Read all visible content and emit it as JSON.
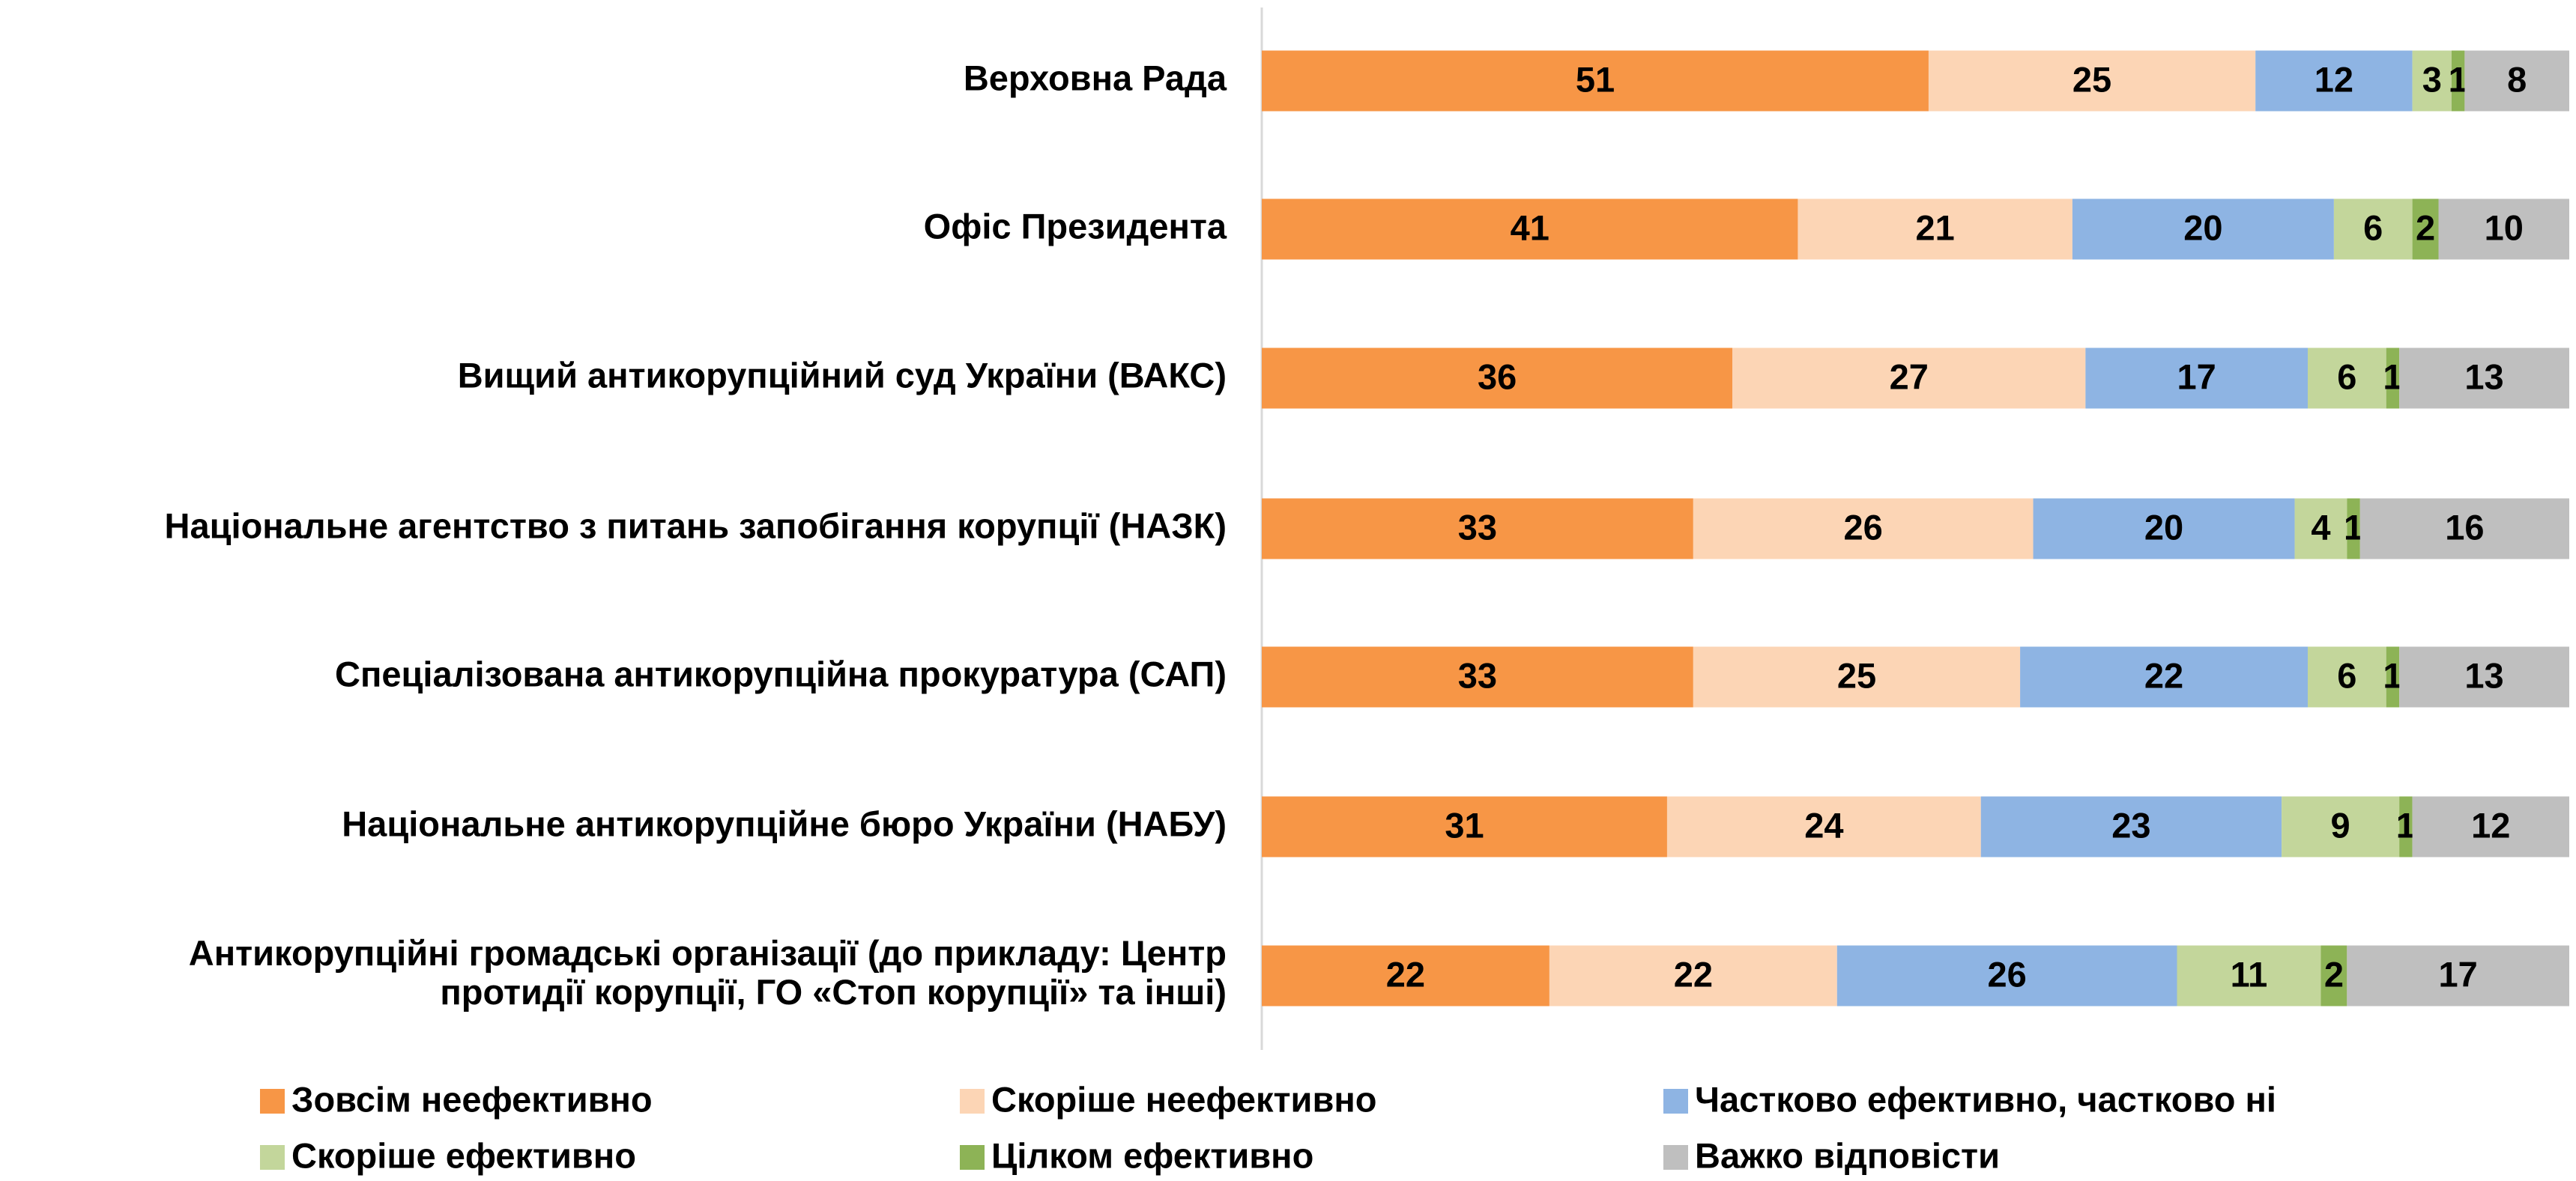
{
  "chart_data": {
    "type": "stacked-bar-horizontal",
    "categories": [
      "Верховна Рада",
      "Офіс Президента",
      "Вищий антикорупційний суд України (ВАКС)",
      "Національне агентство з питань запобігання корупції (НАЗК)",
      "Спеціалізована антикорупційна прокуратура (САП)",
      "Національне антикорупційне бюро України (НАБУ)",
      [
        "Антикорупційні громадські організації (до прикладу: Центр",
        "протидії корупції, ГО «Стоп корупції» та інші)"
      ]
    ],
    "series": [
      {
        "name": "Зовсім неефективно",
        "color": "#f79646",
        "values": [
          51,
          41,
          36,
          33,
          33,
          31,
          22
        ]
      },
      {
        "name": "Скоріше неефективно",
        "color": "#fcd5b5",
        "values": [
          25,
          21,
          27,
          26,
          25,
          24,
          22
        ]
      },
      {
        "name": "Частково ефективно, частково ні",
        "color": "#8eb4e3",
        "values": [
          12,
          20,
          17,
          20,
          22,
          23,
          26
        ]
      },
      {
        "name": "Скоріше ефективно",
        "color": "#c3d69b",
        "values": [
          3,
          6,
          6,
          4,
          6,
          9,
          11
        ]
      },
      {
        "name": "Цілком ефективно",
        "color": "#8db356",
        "values": [
          1,
          2,
          1,
          1,
          1,
          1,
          2
        ]
      },
      {
        "name": "Важко відповісти",
        "color": "#bfbfbf",
        "values": [
          8,
          10,
          13,
          16,
          13,
          12,
          17
        ]
      }
    ],
    "xlim": [
      0,
      100
    ]
  }
}
